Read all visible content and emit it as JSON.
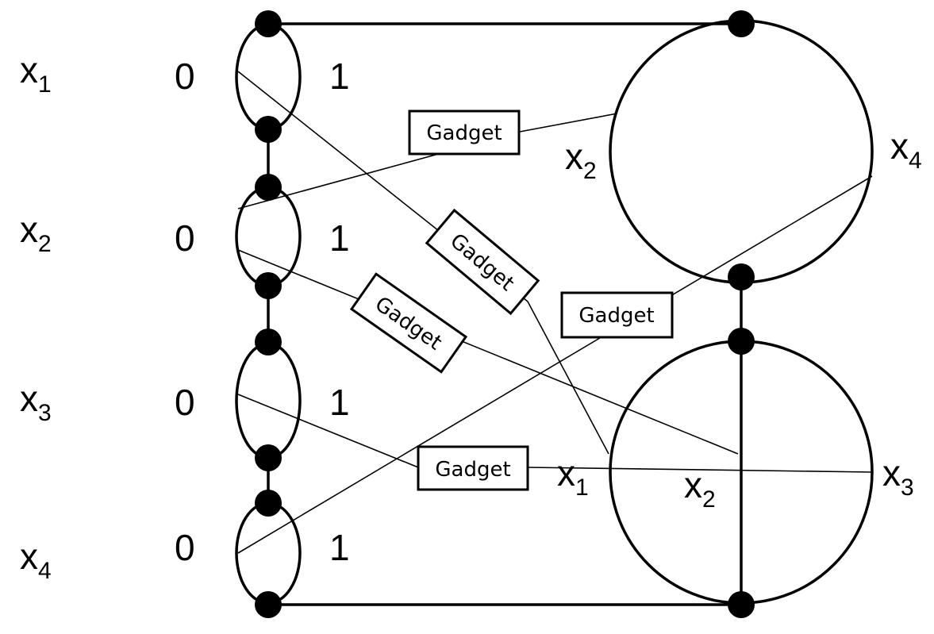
{
  "variables": [
    {
      "name": "x",
      "sub": "1",
      "zero": "0",
      "one": "1"
    },
    {
      "name": "x",
      "sub": "2",
      "zero": "0",
      "one": "1"
    },
    {
      "name": "x",
      "sub": "3",
      "zero": "0",
      "one": "1"
    },
    {
      "name": "x",
      "sub": "4",
      "zero": "0",
      "one": "1"
    }
  ],
  "gadget_label": "Gadget",
  "upper_circle": {
    "left_label": {
      "name": "x",
      "sub": "2"
    },
    "right_label": {
      "name": "x",
      "sub": "4"
    }
  },
  "lower_circle": {
    "left_label": {
      "name": "x",
      "sub": "1"
    },
    "center_label": {
      "name": "x",
      "sub": "2"
    },
    "right_label": {
      "name": "x",
      "sub": "3"
    }
  }
}
